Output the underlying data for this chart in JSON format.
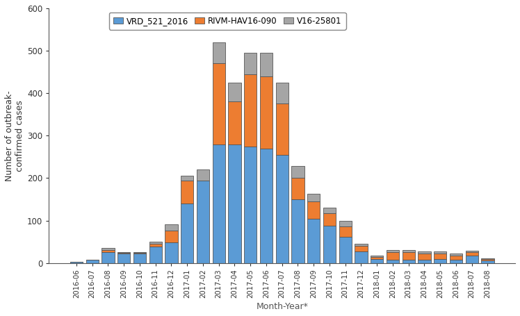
{
  "months": [
    "2016-06",
    "2016-07",
    "2016-08",
    "2016-09",
    "2016-10",
    "2016-11",
    "2016-12",
    "2017-01",
    "2017-02",
    "2017-03",
    "2017-04",
    "2017-05",
    "2017-06",
    "2017-07",
    "2017-08",
    "2017-09",
    "2017-10",
    "2017-11",
    "2017-12",
    "2018-01",
    "2018-02",
    "2018-03",
    "2018-04",
    "2018-05",
    "2018-06",
    "2018-07",
    "2018-08"
  ],
  "VRD_521_2016": [
    2,
    8,
    25,
    22,
    22,
    38,
    48,
    140,
    195,
    280,
    280,
    275,
    270,
    255,
    150,
    105,
    88,
    62,
    28,
    10,
    8,
    8,
    8,
    10,
    8,
    18,
    6
  ],
  "RIVM_HAV16_090": [
    0,
    0,
    5,
    2,
    2,
    8,
    28,
    55,
    0,
    190,
    100,
    170,
    170,
    120,
    50,
    40,
    30,
    25,
    12,
    5,
    18,
    18,
    15,
    12,
    10,
    8,
    3
  ],
  "V16_25801": [
    0,
    0,
    5,
    2,
    2,
    5,
    15,
    10,
    25,
    50,
    45,
    50,
    55,
    50,
    28,
    18,
    12,
    12,
    5,
    2,
    5,
    5,
    5,
    5,
    5,
    3,
    2
  ],
  "colors": {
    "VRD_521_2016": "#5B9BD5",
    "RIVM_HAV16_090": "#ED7D31",
    "V16_25801": "#A5A5A5"
  },
  "ylabel": "Number of outbreak-\nconfirmed cases",
  "xlabel": "Month-Year*",
  "ylim": [
    0,
    600
  ],
  "yticks": [
    0,
    100,
    200,
    300,
    400,
    500,
    600
  ],
  "legend_labels": [
    "VRD_521_2016",
    "RIVM-HAV16-090",
    "V16-25801"
  ]
}
